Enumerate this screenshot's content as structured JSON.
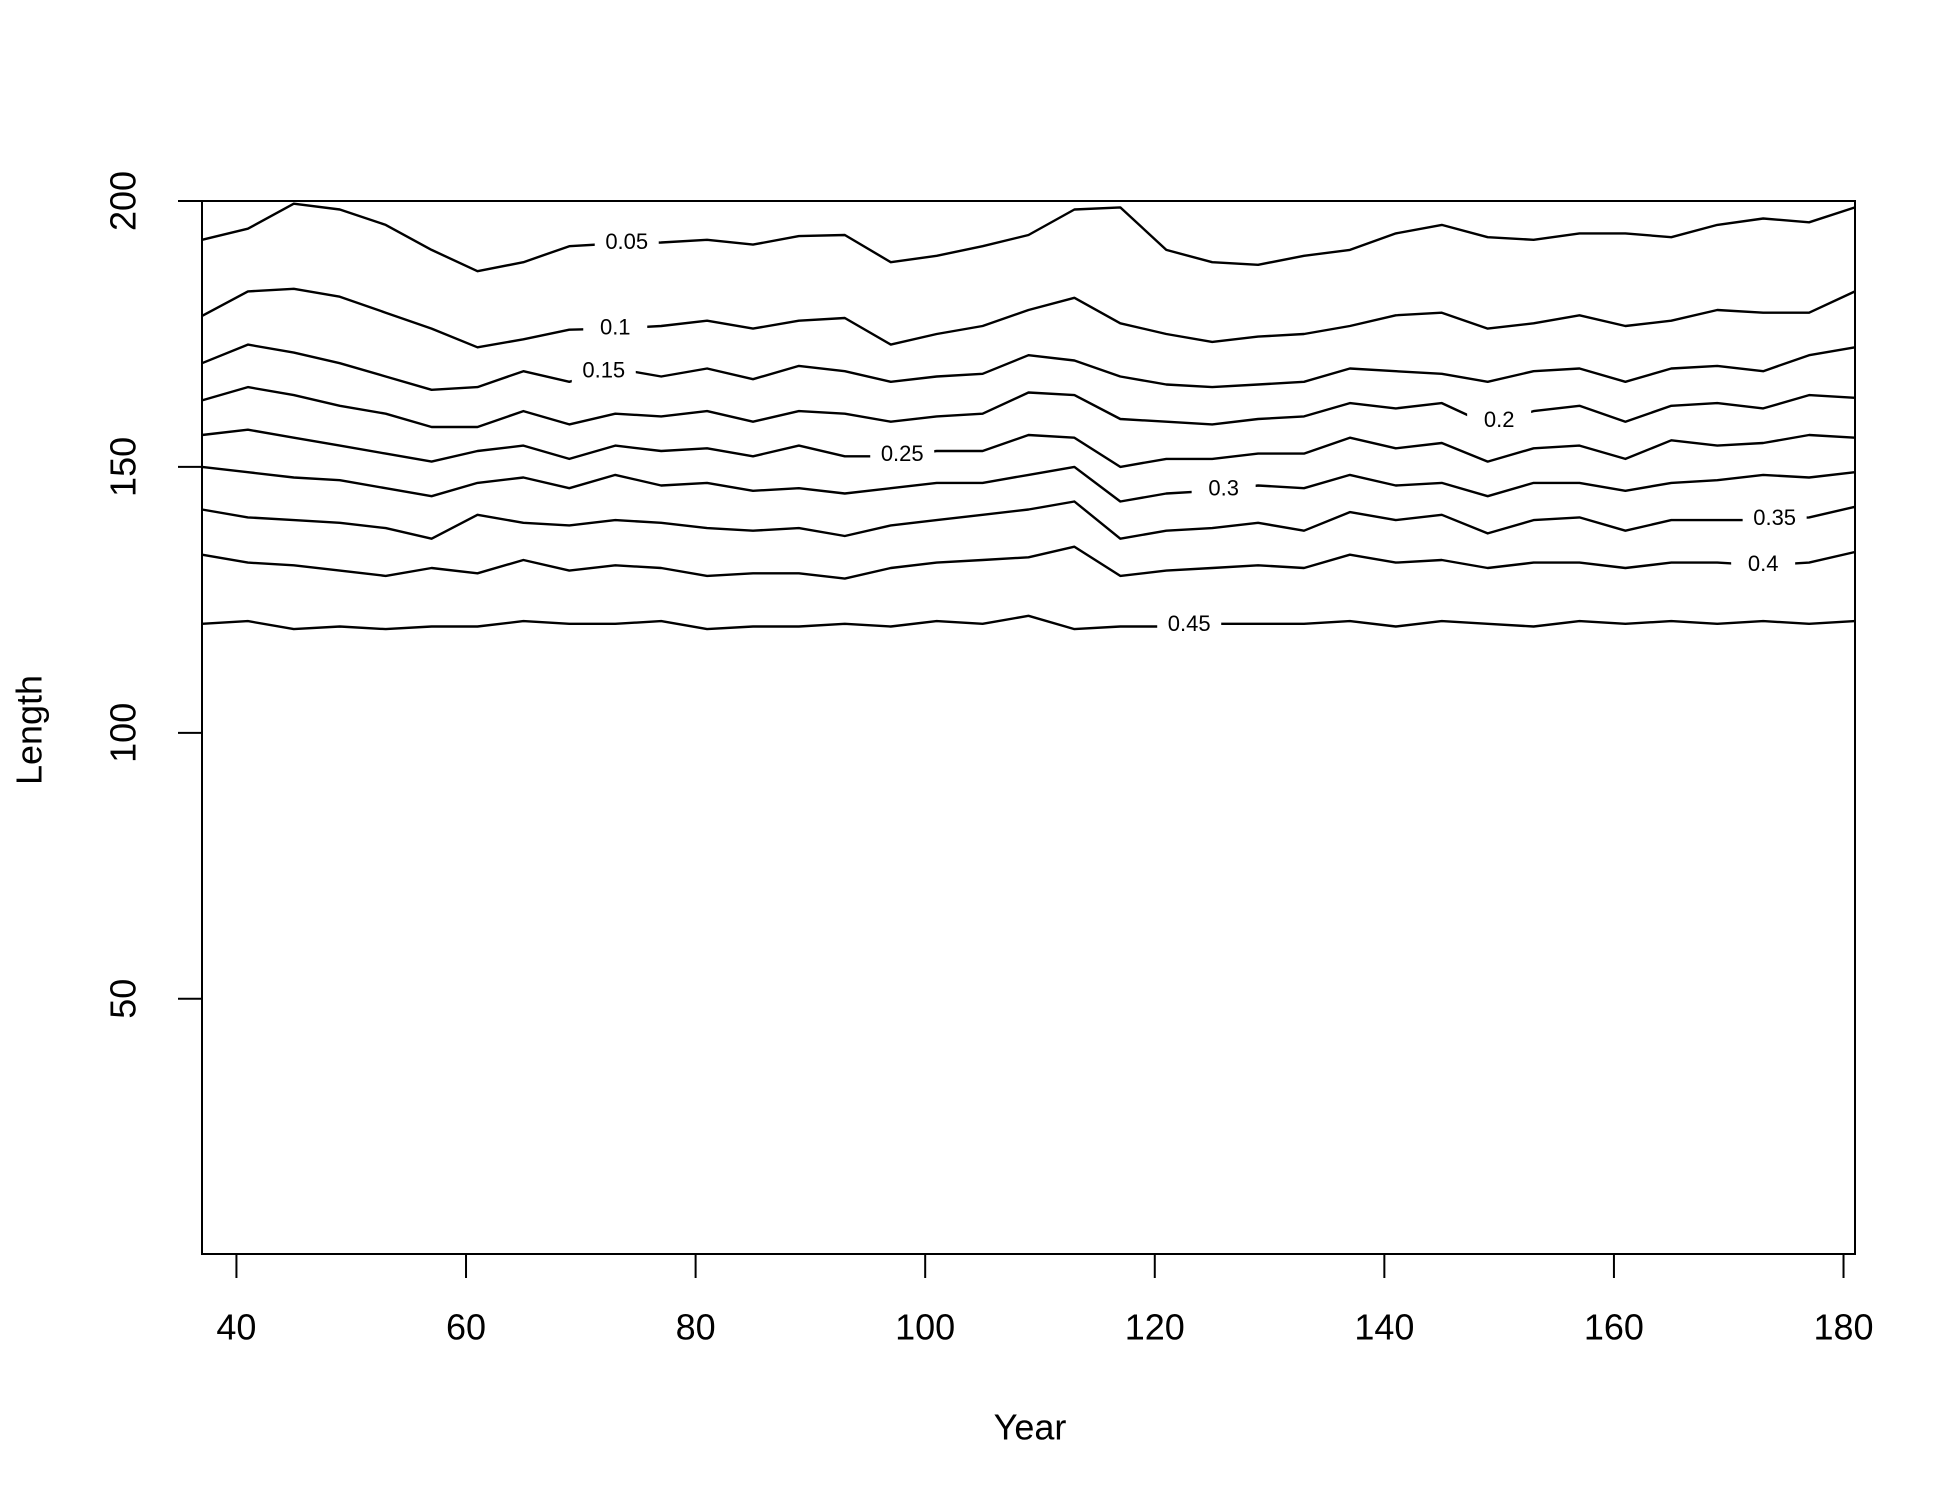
{
  "chart_data": {
    "type": "contour",
    "x_label": "Year",
    "y_label": "Length",
    "xlim": [
      37,
      181
    ],
    "ylim": [
      2,
      200
    ],
    "xticks": [
      40,
      60,
      80,
      100,
      120,
      140,
      160,
      180
    ],
    "yticks": [
      50,
      100,
      150,
      200
    ],
    "color": "#000000",
    "x": [
      37,
      41,
      45,
      49,
      53,
      57,
      61,
      65,
      69,
      73,
      77,
      81,
      85,
      89,
      93,
      97,
      101,
      105,
      109,
      113,
      117,
      121,
      125,
      129,
      133,
      137,
      141,
      145,
      149,
      153,
      157,
      161,
      165,
      169,
      173,
      177,
      181
    ],
    "series": [
      {
        "name": "0.05",
        "values": [
          192.7,
          194.8,
          199.5,
          198.4,
          195.5,
          190.8,
          186.8,
          188.5,
          191.5,
          192,
          192.2,
          192.7,
          191.8,
          193.4,
          193.6,
          188.5,
          189.7,
          191.5,
          193.6,
          198.4,
          198.8,
          190.8,
          188.5,
          188,
          189.7,
          190.8,
          193.9,
          195.5,
          193.2,
          192.7,
          193.9,
          193.9,
          193.2,
          195.5,
          196.7,
          196,
          198.8
        ]
      },
      {
        "name": "0.1",
        "values": [
          178.4,
          183,
          183.5,
          182,
          179,
          176,
          172.5,
          174,
          175.8,
          176,
          176.5,
          177.5,
          176,
          177.5,
          178,
          173,
          175,
          176.5,
          179.5,
          181.8,
          177,
          175,
          173.5,
          174.5,
          175,
          176.5,
          178.5,
          179,
          176,
          177,
          178.5,
          176.5,
          177.5,
          179.5,
          179,
          179,
          183
        ]
      },
      {
        "name": "0.15",
        "values": [
          169.5,
          173,
          171.5,
          169.5,
          167,
          164.5,
          165,
          168,
          166,
          168.5,
          167,
          168.5,
          166.5,
          169,
          168,
          166,
          167,
          167.5,
          171,
          170,
          167,
          165.5,
          165,
          165.5,
          166,
          168.5,
          168,
          167.5,
          166,
          168,
          168.5,
          166,
          168.5,
          169,
          168,
          171,
          172.5
        ]
      },
      {
        "name": "0.2",
        "values": [
          162.5,
          165,
          163.5,
          161.5,
          160,
          157.5,
          157.5,
          160.5,
          158,
          160,
          159.5,
          160.5,
          158.5,
          160.5,
          160,
          158.5,
          159.5,
          160,
          164,
          163.5,
          159,
          158.5,
          158,
          159,
          159.5,
          162,
          161,
          162,
          158,
          160.5,
          161.5,
          158.5,
          161.5,
          162,
          161,
          163.5,
          163
        ]
      },
      {
        "name": "0.25",
        "values": [
          156,
          157,
          155.5,
          154,
          152.5,
          151,
          153,
          154,
          151.5,
          154,
          153,
          153.5,
          152,
          154,
          152,
          152,
          153,
          153,
          156,
          155.5,
          150,
          151.5,
          151.5,
          152.5,
          152.5,
          155.5,
          153.5,
          154.5,
          151,
          153.5,
          154,
          151.5,
          155,
          154,
          154.5,
          156,
          155.5
        ]
      },
      {
        "name": "0.3",
        "values": [
          150,
          149,
          148,
          147.5,
          146,
          144.5,
          147,
          148,
          146,
          148.5,
          146.5,
          147,
          145.5,
          146,
          145,
          146,
          147,
          147,
          148.5,
          150,
          143.5,
          145,
          145.5,
          146.5,
          146,
          148.5,
          146.5,
          147,
          144.5,
          147,
          147,
          145.5,
          147,
          147.5,
          148.5,
          148,
          149
        ]
      },
      {
        "name": "0.35",
        "values": [
          142,
          140.5,
          140,
          139.5,
          138.5,
          136.5,
          141,
          139.5,
          139,
          140,
          139.5,
          138.5,
          138,
          138.5,
          137,
          139,
          140,
          141,
          142,
          143.5,
          136.5,
          138,
          138.5,
          139.5,
          138,
          141.5,
          140,
          141,
          137.5,
          140,
          140.5,
          138,
          140,
          140,
          140,
          140.5,
          142.5
        ]
      },
      {
        "name": "0.4",
        "values": [
          133.5,
          132,
          131.5,
          130.5,
          129.5,
          131,
          130,
          132.5,
          130.5,
          131.5,
          131,
          129.5,
          130,
          130,
          129,
          131,
          132,
          132.5,
          133,
          135,
          129.5,
          130.5,
          131,
          131.5,
          131,
          133.5,
          132,
          132.5,
          131,
          132,
          132,
          131,
          132,
          132,
          131.5,
          132,
          134
        ]
      },
      {
        "name": "0.45",
        "values": [
          120.5,
          121,
          119.5,
          120,
          119.5,
          120,
          120,
          121,
          120.5,
          120.5,
          121,
          119.5,
          120,
          120,
          120.5,
          120,
          121,
          120.5,
          122,
          119.5,
          120,
          120,
          120.5,
          120.5,
          120.5,
          121,
          120,
          121,
          120.5,
          120,
          121,
          120.5,
          121,
          120.5,
          121,
          120.5,
          121
        ]
      }
    ]
  }
}
